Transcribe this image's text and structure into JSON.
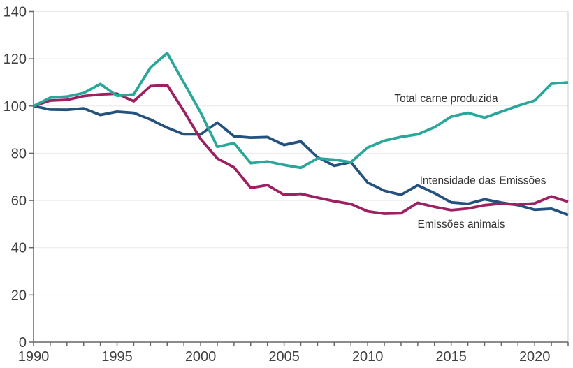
{
  "chart_data": {
    "type": "line",
    "title": "",
    "xlabel": "",
    "ylabel": "",
    "x_range": [
      1990,
      2022
    ],
    "ylim": [
      0,
      140
    ],
    "grid": "horizontal",
    "legend_position": "inline-annotations",
    "y_ticks": [
      0,
      20,
      40,
      60,
      80,
      100,
      120,
      140
    ],
    "x_major_ticks": [
      1990,
      1995,
      2000,
      2005,
      2010,
      2015,
      2020
    ],
    "x_minor_tick_step_years": 1,
    "x": [
      1990,
      1991,
      1992,
      1993,
      1994,
      1995,
      1996,
      1997,
      1998,
      1999,
      2000,
      2001,
      2002,
      2003,
      2004,
      2005,
      2006,
      2007,
      2008,
      2009,
      2010,
      2011,
      2012,
      2013,
      2014,
      2015,
      2016,
      2017,
      2018,
      2019,
      2020,
      2021,
      2022
    ],
    "series": [
      {
        "name": "Intensidade das Emissões",
        "color": "#24517d",
        "values": [
          100,
          98.5,
          98.4,
          99,
          96.2,
          97.6,
          97.1,
          94.3,
          90.8,
          88,
          88,
          93,
          87.2,
          86.6,
          86.8,
          83.5,
          85,
          78.3,
          74.7,
          76.2,
          67.6,
          64.1,
          62.4,
          66.4,
          63.1,
          59.2,
          58.6,
          60.5,
          59.1,
          58,
          56.1,
          56.5,
          53.9
        ]
      },
      {
        "name": "Emissões animais",
        "color": "#9c2161",
        "values": [
          100,
          102.3,
          102.6,
          104.2,
          104.9,
          105.2,
          102,
          108.4,
          108.8,
          97.8,
          86,
          77.8,
          74,
          65.3,
          66.5,
          62.4,
          62.8,
          61.2,
          59.7,
          58.5,
          55.4,
          54.4,
          54.6,
          59,
          57.3,
          55.9,
          56.6,
          58,
          58.7,
          58.2,
          58.8,
          61.7,
          59.5
        ]
      },
      {
        "name": "Total carne produzida",
        "color": "#2aa79a",
        "values": [
          100,
          103.5,
          104,
          105.5,
          109.3,
          104.3,
          104.9,
          116.3,
          122.4,
          109.8,
          97.3,
          82.7,
          84.3,
          75.8,
          76.5,
          75,
          73.8,
          77.8,
          77.3,
          76.2,
          82.4,
          85.3,
          86.9,
          88,
          91,
          95.5,
          97.1,
          95.1,
          97.6,
          100.1,
          102.3,
          109.4,
          110
        ]
      }
    ],
    "annotations": [
      {
        "text": "Total carne produzida",
        "x": 2014.7,
        "y": 103.2
      },
      {
        "text": "Intensidade das Emissões",
        "x": 2016.9,
        "y": 68.4
      },
      {
        "text": "Emissões animais",
        "x": 2015.6,
        "y": 50.0
      }
    ],
    "colors": {
      "axis_line": "#666666",
      "tick": "#666666",
      "tick_label": "#404040",
      "gridline": "#e9e9e9",
      "right_border": "#cccccc",
      "annotation_text": "#333333",
      "background": "#ffffff"
    }
  }
}
